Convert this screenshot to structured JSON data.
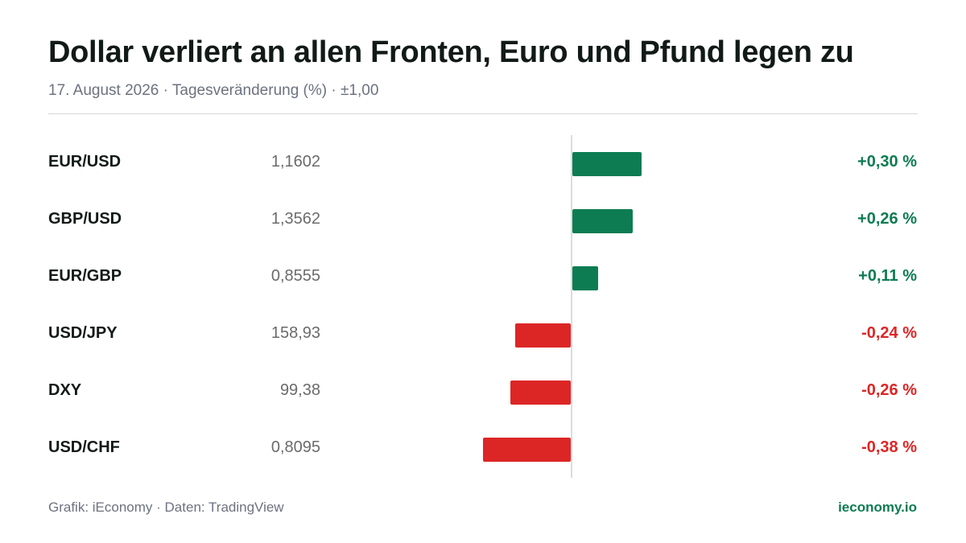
{
  "header": {
    "title": "Dollar verliert an allen Fronten, Euro und Pfund legen zu",
    "subtitle": "17. August 2026 · Tagesveränderung (%) · ±1,00"
  },
  "footer": {
    "source": "Grafik: iEconomy · Daten: TradingView",
    "brand": "ieconomy.io"
  },
  "colors": {
    "positive": "#0d7c52",
    "negative": "#dc2626",
    "axis": "#dcdcdc"
  },
  "chart_data": {
    "type": "bar",
    "orientation": "horizontal",
    "title": "Dollar verliert an allen Fronten, Euro und Pfund legen zu",
    "subtitle": "17. August 2026 · Tagesveränderung (%) · ±1,00",
    "xlim": [
      -1.0,
      1.0
    ],
    "categories": [
      "EUR/USD",
      "GBP/USD",
      "EUR/GBP",
      "USD/JPY",
      "DXY",
      "USD/CHF"
    ],
    "prices": [
      "1,1602",
      "1,3562",
      "0,8555",
      "158,93",
      "99,38",
      "0,8095"
    ],
    "values": [
      0.3,
      0.26,
      0.11,
      -0.24,
      -0.26,
      -0.38
    ],
    "labels": [
      "+0,30 %",
      "+0,26 %",
      "+0,11 %",
      "-0,24 %",
      "-0,26 %",
      "-0,38 %"
    ]
  }
}
